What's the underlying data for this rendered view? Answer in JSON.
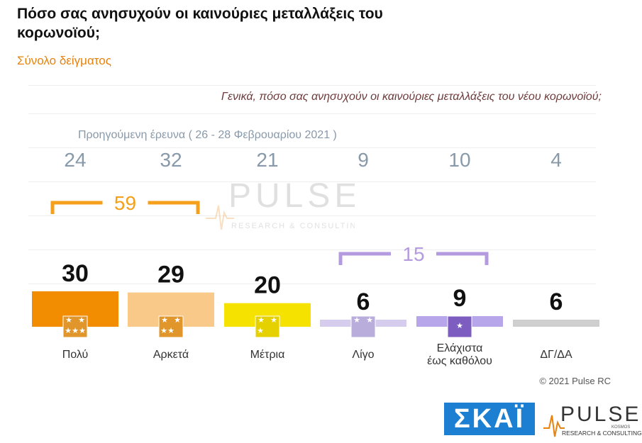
{
  "title": "Πόσο σας ανησυχούν οι καινούριες μεταλλάξεις του κορωνοϊού;",
  "subtitle": "Σύνολο δείγματος",
  "question": "Γενικά, πόσο σας ανησυχούν οι καινούριες μεταλλάξεις του νέου κορωνοϊού;",
  "previous_survey_label": "Προηγούμενη έρευνα  ( 26 - 28  Φεβρουαρίου  2021 )",
  "copyright": "© 2021 Pulse RC",
  "logos": {
    "channel": "ΣΚΑΪ",
    "pulse_name": "PULSE",
    "pulse_tagline": "RESEARCH & CONSULTING",
    "pulse_sub": "KOSMOS"
  },
  "colors": {
    "title": "#111111",
    "subtitle": "#e8820c",
    "question": "#6e3b3b",
    "previous": "#8899aa",
    "bracket_orange": "#f5a01a",
    "bracket_purple": "#b49be0"
  },
  "chart_data": {
    "type": "bar",
    "categories": [
      "Πολύ",
      "Αρκετά",
      "Μέτρια",
      "Λίγο",
      "Ελάχιστα έως καθόλου",
      "ΔΓ/ΔΑ"
    ],
    "category_lines": [
      [
        "Πολύ"
      ],
      [
        "Αρκετά"
      ],
      [
        "Μέτρια"
      ],
      [
        "Λίγο"
      ],
      [
        "Ελάχιστα",
        "έως καθόλου"
      ],
      [
        "ΔΓ/ΔΑ"
      ]
    ],
    "values": [
      30,
      29,
      20,
      6,
      9,
      6
    ],
    "previous_values": [
      24,
      32,
      21,
      9,
      10,
      4
    ],
    "bar_colors": [
      "#f28c00",
      "#f9c98a",
      "#f5e200",
      "#d6cdee",
      "#b8a6ea",
      "#cfcfcf"
    ],
    "stars": [
      5,
      4,
      3,
      2,
      1,
      0
    ],
    "groups": [
      {
        "label": "59",
        "from": 0,
        "to": 1,
        "color": "#f5a01a"
      },
      {
        "label": "15",
        "from": 3,
        "to": 4,
        "color": "#b49be0"
      }
    ],
    "ylim": [
      0,
      30
    ],
    "grid": true
  }
}
